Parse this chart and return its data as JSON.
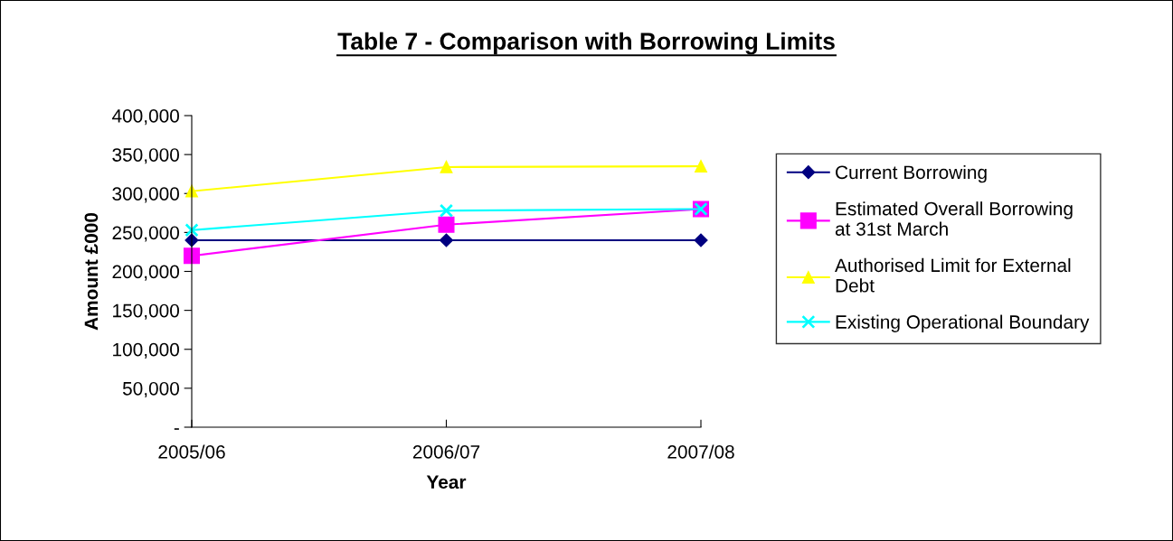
{
  "chart_data": {
    "type": "line",
    "title": "Table 7 - Comparison with Borrowing Limits",
    "xlabel": "Year",
    "ylabel": "Amount £000",
    "categories": [
      "2005/06",
      "2006/07",
      "2007/08"
    ],
    "series": [
      {
        "name": "Current Borrowing",
        "color": "#000080",
        "marker": "diamond",
        "values": [
          240000,
          240000,
          240000
        ]
      },
      {
        "name": "Estimated Overall Borrowing\nat 31st March",
        "color": "#ff00ff",
        "marker": "square",
        "values": [
          220000,
          260000,
          280000
        ]
      },
      {
        "name": "Authorised Limit for External\nDebt",
        "color": "#ffff00",
        "marker": "triangle",
        "values": [
          303000,
          334000,
          335000
        ]
      },
      {
        "name": "Existing Operational Boundary",
        "color": "#00ffff",
        "marker": "cross",
        "values": [
          253000,
          278000,
          280000
        ]
      }
    ],
    "ylim": [
      0,
      400000
    ],
    "yticks": [
      {
        "value": 0,
        "label": "-"
      },
      {
        "value": 50000,
        "label": "50,000"
      },
      {
        "value": 100000,
        "label": "100,000"
      },
      {
        "value": 150000,
        "label": "150,000"
      },
      {
        "value": 200000,
        "label": "200,000"
      },
      {
        "value": 250000,
        "label": "250,000"
      },
      {
        "value": 300000,
        "label": "300,000"
      },
      {
        "value": 350000,
        "label": "350,000"
      },
      {
        "value": 400000,
        "label": "400,000"
      }
    ],
    "grid": false,
    "legend": "right",
    "line_style": "solid"
  }
}
